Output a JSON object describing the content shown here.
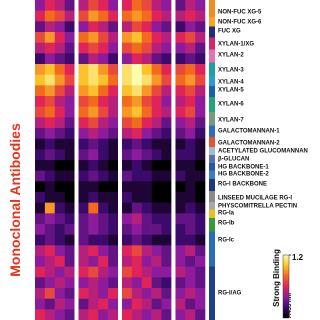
{
  "chart_data": {
    "type": "heatmap",
    "y_title": "Monoclonal Antibodies",
    "colorbar": {
      "label": "Strong Binding",
      "ticks": [
        1.2
      ],
      "unit": "A455 nm"
    },
    "zlim": [
      0,
      1.2
    ],
    "colormap": [
      "#000000",
      "#3b0a6b",
      "#8c1c9c",
      "#e0245a",
      "#f26b1d",
      "#fbc22c",
      "#fdfdb0"
    ],
    "groups": [
      {
        "label": "NON-FUC XG-5",
        "color": "#f28c1e"
      },
      {
        "label": "NON-FUC XG-6",
        "color": "#f5a623"
      },
      {
        "label": "FUC XG",
        "color": "#1f2d7a"
      },
      {
        "label": "XYLAN-1/XG",
        "color": "#d6246e"
      },
      {
        "label": "XYLAN-2",
        "color": "#e86fb0"
      },
      {
        "label": "XYLAN-3",
        "color": "#1aa39a"
      },
      {
        "label": "XYLAN-4",
        "color": "#2b9bd4"
      },
      {
        "label": "XYLAN-5",
        "color": "#1e5fae"
      },
      {
        "label": "XYLAN-6",
        "color": "#22a57a"
      },
      {
        "label": "XYLAN-7",
        "color": "#7a9a80"
      },
      {
        "label": "GALACTOMANNAN-1",
        "color": "#2a6fc0"
      },
      {
        "label": "GALACTOMANNAN-2",
        "color": "#e8552a"
      },
      {
        "label": "ACETYLATED GLUCOMANNAN",
        "color": "#9bbbd8"
      },
      {
        "label": "β-GLUCAN",
        "color": "#5c6fa8"
      },
      {
        "label": "HG BACKBONE-1",
        "color": "#2a58a8"
      },
      {
        "label": "HG BACKBONE-2",
        "color": "#3b7cc6"
      },
      {
        "label": "RG-I BACKBONE",
        "color": "#1d3a7a"
      },
      {
        "label": "LINSEED MUCILAGE RG-I",
        "color": "#8a8a8a"
      },
      {
        "label": "PHYSCOMITRELLA PECTIN",
        "color": "#a8a8a8"
      },
      {
        "label": "RG-Ia",
        "color": "#e6c21e"
      },
      {
        "label": "RG-Ib",
        "color": "#3a9a3a"
      },
      {
        "label": "RG-Ic",
        "color": "#2b6cb8"
      },
      {
        "label": "RG-I/AG",
        "color": "#1f3f8a"
      }
    ],
    "values": [
      [
        0.4,
        0.6,
        0.5,
        0.3,
        0.5,
        0.7,
        0.6,
        0.4,
        0.6,
        0.8,
        0.7,
        0.5,
        0.4,
        0.3,
        0.5,
        0.4
      ],
      [
        0.6,
        0.8,
        0.7,
        0.5,
        0.7,
        0.9,
        0.8,
        0.6,
        0.8,
        0.9,
        0.8,
        0.6,
        0.5,
        0.5,
        0.6,
        0.5
      ],
      [
        0.3,
        0.5,
        0.4,
        0.2,
        0.4,
        0.6,
        0.5,
        0.3,
        0.5,
        0.7,
        0.6,
        0.4,
        0.3,
        0.2,
        0.4,
        0.3
      ],
      [
        0.7,
        0.9,
        0.6,
        0.4,
        0.8,
        0.9,
        0.7,
        0.5,
        0.9,
        1.0,
        0.8,
        0.6,
        0.5,
        0.6,
        0.7,
        0.5
      ],
      [
        0.5,
        0.6,
        0.5,
        0.3,
        0.6,
        0.7,
        0.6,
        0.4,
        0.7,
        0.8,
        0.7,
        0.5,
        0.4,
        0.4,
        0.5,
        0.3
      ],
      [
        0.2,
        0.4,
        0.3,
        0.2,
        0.3,
        0.5,
        0.4,
        0.2,
        0.4,
        0.6,
        0.5,
        0.3,
        0.2,
        0.2,
        0.3,
        0.2
      ],
      [
        0.9,
        1.0,
        0.8,
        0.6,
        1.0,
        1.1,
        0.9,
        0.7,
        1.1,
        1.2,
        1.0,
        0.8,
        0.6,
        0.7,
        0.8,
        0.6
      ],
      [
        1.0,
        1.1,
        0.9,
        0.7,
        1.0,
        1.1,
        1.0,
        0.8,
        1.1,
        1.2,
        1.1,
        0.9,
        0.7,
        0.8,
        0.9,
        0.7
      ],
      [
        0.8,
        0.9,
        0.7,
        0.5,
        0.9,
        1.0,
        0.8,
        0.6,
        1.0,
        1.1,
        0.9,
        0.7,
        0.5,
        0.6,
        0.7,
        0.5
      ],
      [
        0.6,
        0.7,
        0.5,
        0.4,
        0.7,
        0.8,
        0.6,
        0.5,
        0.8,
        0.9,
        0.7,
        0.6,
        0.4,
        0.5,
        0.6,
        0.4
      ],
      [
        0.7,
        0.8,
        0.6,
        0.4,
        0.8,
        0.9,
        0.7,
        0.5,
        0.9,
        1.0,
        0.8,
        0.6,
        0.5,
        0.6,
        0.7,
        0.4
      ],
      [
        0.5,
        0.6,
        0.5,
        0.3,
        0.6,
        0.7,
        0.5,
        0.4,
        0.7,
        0.8,
        0.6,
        0.5,
        0.3,
        0.4,
        0.5,
        0.3
      ],
      [
        0.3,
        0.4,
        0.3,
        0.2,
        0.4,
        0.5,
        0.4,
        0.3,
        0.5,
        0.6,
        0.4,
        0.3,
        0.2,
        0.3,
        0.4,
        0.2
      ],
      [
        0.1,
        0.2,
        0.1,
        0.1,
        0.2,
        0.3,
        0.2,
        0.1,
        0.2,
        0.3,
        0.2,
        0.1,
        0.1,
        0.1,
        0.2,
        0.1
      ],
      [
        0.2,
        0.3,
        0.2,
        0.1,
        0.3,
        0.4,
        0.2,
        0.1,
        0.3,
        0.4,
        0.3,
        0.2,
        0.1,
        0.2,
        0.2,
        0.1
      ],
      [
        0.1,
        0.1,
        0.0,
        0.0,
        0.1,
        0.2,
        0.1,
        0.0,
        0.1,
        0.2,
        0.1,
        0.0,
        0.0,
        0.1,
        0.1,
        0.0
      ],
      [
        0.3,
        0.2,
        0.1,
        0.1,
        0.2,
        0.3,
        0.2,
        0.1,
        0.3,
        0.2,
        0.2,
        0.1,
        0.1,
        0.2,
        0.1,
        0.1
      ],
      [
        0.0,
        0.1,
        0.0,
        0.0,
        0.1,
        0.1,
        0.0,
        0.0,
        0.1,
        0.1,
        0.1,
        0.0,
        0.0,
        0.0,
        0.1,
        0.0
      ],
      [
        0.2,
        0.1,
        0.1,
        0.0,
        0.1,
        0.2,
        0.1,
        0.1,
        0.2,
        0.1,
        0.1,
        0.0,
        0.0,
        0.1,
        0.1,
        0.0
      ],
      [
        0.1,
        0.9,
        0.2,
        0.1,
        0.2,
        0.8,
        0.2,
        0.1,
        0.1,
        0.3,
        0.2,
        0.1,
        0.1,
        0.1,
        0.2,
        0.1
      ],
      [
        0.3,
        0.4,
        0.3,
        0.2,
        0.3,
        0.4,
        0.3,
        0.2,
        0.4,
        0.5,
        0.3,
        0.2,
        0.2,
        0.3,
        0.3,
        0.2
      ],
      [
        0.4,
        0.3,
        0.2,
        0.3,
        0.3,
        0.4,
        0.3,
        0.2,
        0.3,
        0.4,
        0.3,
        0.3,
        0.2,
        0.2,
        0.3,
        0.2
      ],
      [
        0.2,
        0.3,
        0.2,
        0.1,
        0.3,
        0.2,
        0.2,
        0.1,
        0.2,
        0.3,
        0.2,
        0.1,
        0.1,
        0.2,
        0.2,
        0.1
      ],
      [
        0.5,
        0.6,
        0.4,
        0.3,
        0.5,
        0.6,
        0.4,
        0.3,
        0.6,
        0.7,
        0.5,
        0.4,
        0.3,
        0.4,
        0.5,
        0.3
      ],
      [
        0.4,
        0.5,
        0.6,
        0.3,
        0.5,
        0.4,
        0.6,
        0.3,
        0.5,
        0.6,
        0.4,
        0.5,
        0.3,
        0.4,
        0.3,
        0.4
      ],
      [
        0.6,
        0.5,
        0.4,
        0.5,
        0.6,
        0.7,
        0.5,
        0.4,
        0.7,
        0.6,
        0.5,
        0.4,
        0.4,
        0.5,
        0.4,
        0.3
      ],
      [
        0.3,
        0.4,
        0.5,
        0.4,
        0.4,
        0.5,
        0.4,
        0.3,
        0.5,
        0.4,
        0.6,
        0.3,
        0.2,
        0.3,
        0.4,
        0.3
      ],
      [
        0.5,
        0.7,
        0.4,
        0.3,
        0.6,
        0.5,
        0.4,
        0.6,
        0.7,
        0.5,
        0.4,
        0.5,
        0.3,
        0.4,
        0.5,
        0.4
      ],
      [
        0.4,
        0.3,
        0.5,
        0.4,
        0.3,
        0.5,
        0.6,
        0.4,
        0.4,
        0.6,
        0.5,
        0.3,
        0.4,
        0.5,
        0.3,
        0.4
      ],
      [
        0.6,
        0.5,
        0.4,
        0.3,
        0.5,
        0.6,
        0.4,
        0.5,
        0.6,
        0.5,
        0.4,
        0.5,
        0.3,
        0.4,
        0.5,
        0.3
      ]
    ]
  }
}
